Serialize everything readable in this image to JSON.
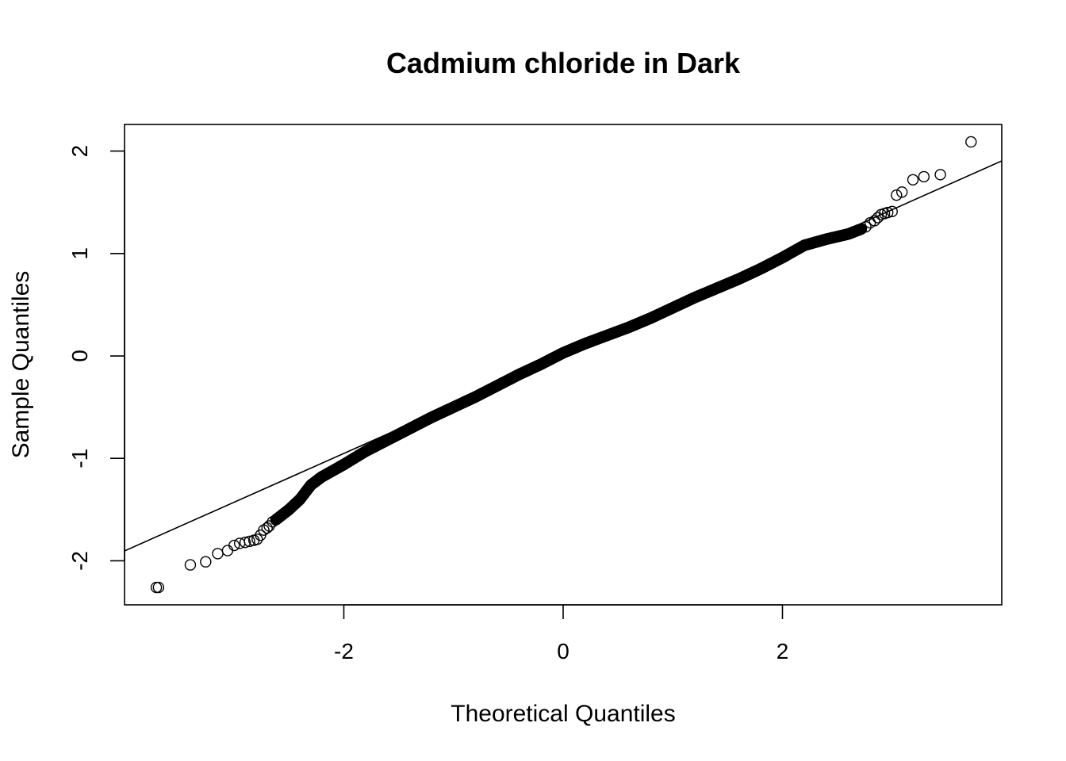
{
  "chart_data": {
    "type": "scatter",
    "subtype": "qq-normal",
    "title": "Cadmium chloride in Dark",
    "xlabel": "Theoretical Quantiles",
    "ylabel": "Sample Quantiles",
    "xlim": [
      -4.0,
      4.0
    ],
    "ylim": [
      -2.43,
      2.26
    ],
    "xticks": [
      -2,
      0,
      2
    ],
    "xtick_labels": [
      "-2",
      "0",
      "2"
    ],
    "yticks": [
      -2,
      -1,
      0,
      1,
      2
    ],
    "ytick_labels": [
      "-2",
      "-1",
      "0",
      "1",
      "2"
    ],
    "grid": false,
    "legend": "none",
    "marker": "open-circle",
    "reference_line": {
      "intercept": 0.0,
      "slope": 0.476
    },
    "series": [
      {
        "n_points": 6000,
        "points": [
          [
            -3.69,
            -2.26
          ],
          [
            -3.4,
            -2.04
          ],
          [
            -3.26,
            -2.01
          ],
          [
            -3.15,
            -1.93
          ],
          [
            -3.06,
            -1.9
          ],
          [
            -3.0,
            -1.85
          ],
          [
            -2.95,
            -1.83
          ],
          [
            -2.9,
            -1.82
          ],
          [
            -2.86,
            -1.81
          ],
          [
            -2.82,
            -1.8
          ],
          [
            -2.79,
            -1.79
          ],
          [
            -2.76,
            -1.75
          ],
          [
            -2.73,
            -1.7
          ],
          [
            -2.7,
            -1.68
          ],
          [
            -2.68,
            -1.66
          ],
          [
            -2.65,
            -1.62
          ],
          [
            -3.71,
            -2.26
          ],
          [
            2.76,
            1.26
          ],
          [
            2.8,
            1.3
          ],
          [
            2.84,
            1.32
          ],
          [
            2.87,
            1.35
          ],
          [
            2.9,
            1.38
          ],
          [
            2.93,
            1.39
          ],
          [
            2.96,
            1.4
          ],
          [
            3.0,
            1.41
          ],
          [
            3.04,
            1.57
          ],
          [
            3.09,
            1.6
          ],
          [
            3.19,
            1.72
          ],
          [
            3.29,
            1.75
          ],
          [
            3.44,
            1.77
          ],
          [
            3.72,
            2.09
          ]
        ],
        "body_curve": [
          [
            -2.62,
            -1.6
          ],
          [
            -2.5,
            -1.5
          ],
          [
            -2.4,
            -1.4
          ],
          [
            -2.3,
            -1.26
          ],
          [
            -2.2,
            -1.18
          ],
          [
            -2.0,
            -1.06
          ],
          [
            -1.8,
            -0.93
          ],
          [
            -1.6,
            -0.82
          ],
          [
            -1.4,
            -0.71
          ],
          [
            -1.2,
            -0.6
          ],
          [
            -1.0,
            -0.5
          ],
          [
            -0.8,
            -0.4
          ],
          [
            -0.6,
            -0.29
          ],
          [
            -0.4,
            -0.18
          ],
          [
            -0.2,
            -0.08
          ],
          [
            0.0,
            0.03
          ],
          [
            0.2,
            0.12
          ],
          [
            0.4,
            0.2
          ],
          [
            0.6,
            0.28
          ],
          [
            0.8,
            0.37
          ],
          [
            1.0,
            0.47
          ],
          [
            1.2,
            0.57
          ],
          [
            1.4,
            0.66
          ],
          [
            1.6,
            0.75
          ],
          [
            1.8,
            0.85
          ],
          [
            2.0,
            0.96
          ],
          [
            2.2,
            1.08
          ],
          [
            2.4,
            1.14
          ],
          [
            2.6,
            1.19
          ],
          [
            2.72,
            1.24
          ]
        ]
      }
    ]
  }
}
